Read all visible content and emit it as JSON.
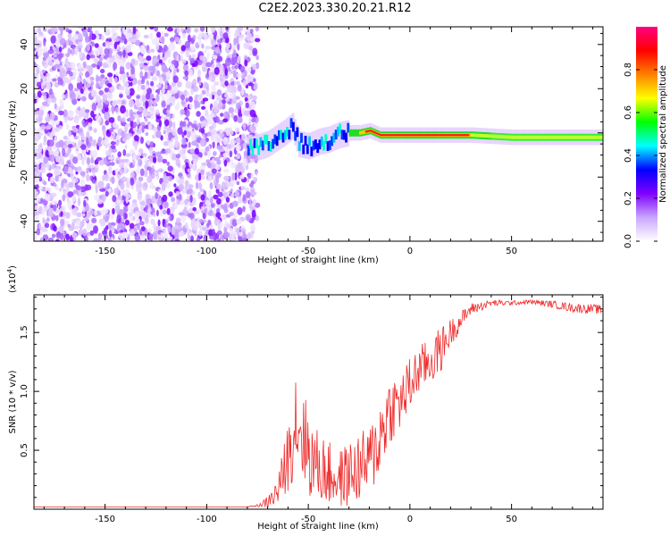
{
  "title": "C2E2.2023.330.20.21.R12",
  "chart_data": [
    {
      "type": "heatmap",
      "xlabel": "Height of straight line (km)",
      "ylabel": "Frequency (Hz)",
      "xlim": [
        -185,
        95
      ],
      "ylim": [
        -49,
        48
      ],
      "xticks": [
        -150,
        -100,
        -50,
        0,
        50
      ],
      "yticks": [
        -40,
        -20,
        0,
        20,
        40
      ],
      "signal_track": {
        "description_points_x": [
          -80,
          -70,
          -62,
          -58,
          -55,
          -50,
          -45,
          -40,
          -35,
          -30,
          -25,
          -20,
          -15,
          -10,
          0,
          10,
          20,
          30,
          50,
          70,
          95
        ],
        "center_frequency_hz": [
          -8,
          -5,
          0,
          3,
          -5,
          -6,
          -4,
          -3,
          -1,
          0,
          0,
          1,
          -1,
          -1,
          -1,
          -1,
          -1,
          -1,
          -2,
          -2,
          -2
        ]
      },
      "noise_region_x": [
        -185,
        -75
      ],
      "colorbar": {
        "label": "Normalized spectral amplitude",
        "range": [
          0.0,
          1.0
        ],
        "ticks": [
          0.0,
          0.2,
          0.4,
          0.6,
          0.8
        ],
        "tick_labels": [
          "0.0",
          "0.2",
          "0.4",
          "0.6",
          "0.8"
        ],
        "colors": [
          "#ffffff",
          "#c9a6ff",
          "#8000ff",
          "#0000ff",
          "#00ffff",
          "#00ff00",
          "#ffff00",
          "#ff8000",
          "#ff0000",
          "#ff0080"
        ]
      }
    },
    {
      "type": "line",
      "xlabel": "Height of straight line (km)",
      "ylabel": "SNR (10 * v/v)",
      "y_multiplier": "(x10",
      "y_multiplier_exp": "4",
      "y_multiplier_close": ")",
      "xlim": [
        -185,
        95
      ],
      "ylim": [
        0,
        1.82
      ],
      "xticks": [
        -150,
        -100,
        -50,
        0,
        50
      ],
      "yticks": [
        0.5,
        1.0,
        1.5
      ],
      "ytick_labels": [
        "0.5",
        "1.0",
        "1.5"
      ],
      "color": "#ee2a2a",
      "x": [
        -185,
        -80,
        -75,
        -70,
        -65,
        -60,
        -56,
        -52,
        -48,
        -44,
        -40,
        -35,
        -30,
        -25,
        -20,
        -15,
        -10,
        -5,
        0,
        5,
        10,
        15,
        20,
        25,
        30,
        40,
        50,
        60,
        70,
        80,
        90,
        95
      ],
      "y": [
        0.02,
        0.02,
        0.03,
        0.06,
        0.15,
        0.45,
        0.8,
        0.6,
        0.4,
        0.35,
        0.3,
        0.25,
        0.3,
        0.35,
        0.4,
        0.6,
        0.85,
        0.9,
        1.05,
        1.2,
        1.25,
        1.35,
        1.5,
        1.6,
        1.7,
        1.75,
        1.75,
        1.76,
        1.74,
        1.71,
        1.7,
        1.69
      ],
      "spread": [
        0.0,
        0.0,
        0.01,
        0.05,
        0.12,
        0.3,
        0.5,
        0.4,
        0.35,
        0.3,
        0.28,
        0.25,
        0.28,
        0.3,
        0.3,
        0.35,
        0.3,
        0.25,
        0.25,
        0.2,
        0.2,
        0.2,
        0.12,
        0.08,
        0.05,
        0.03,
        0.02,
        0.02,
        0.03,
        0.04,
        0.04,
        0.04
      ]
    }
  ]
}
